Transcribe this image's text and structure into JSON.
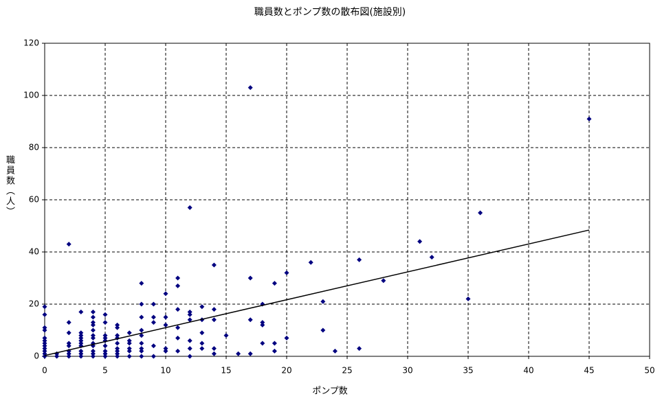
{
  "chart_data": {
    "type": "scatter",
    "title": "職員数とポンプ数の散布図(施設別)",
    "x_label": "ポンプ数",
    "y_label": "職員数（人）",
    "color": "#000080",
    "x": [
      0,
      0,
      0,
      0,
      0,
      0,
      0,
      0,
      0,
      0,
      0,
      0,
      1,
      1,
      2,
      2,
      2,
      2,
      2,
      2,
      2,
      2,
      3,
      3,
      3,
      3,
      3,
      3,
      3,
      3,
      3,
      3,
      4,
      4,
      4,
      4,
      4,
      4,
      4,
      4,
      4,
      4,
      4,
      4,
      5,
      5,
      5,
      5,
      5,
      5,
      5,
      5,
      5,
      6,
      6,
      6,
      6,
      6,
      6,
      6,
      6,
      6,
      7,
      7,
      7,
      7,
      7,
      7,
      8,
      8,
      8,
      8,
      8,
      8,
      8,
      8,
      8,
      9,
      9,
      9,
      9,
      9,
      10,
      10,
      10,
      10,
      10,
      11,
      11,
      11,
      11,
      11,
      11,
      12,
      12,
      12,
      12,
      12,
      12,
      12,
      13,
      13,
      13,
      13,
      13,
      14,
      14,
      14,
      14,
      14,
      15,
      16,
      17,
      17,
      17,
      17,
      18,
      18,
      18,
      18,
      19,
      19,
      19,
      20,
      20,
      22,
      23,
      23,
      24,
      26,
      26,
      28,
      31,
      32,
      35,
      36,
      45
    ],
    "y": [
      19,
      16,
      11,
      10,
      7,
      6,
      5,
      4,
      3,
      2,
      1,
      0,
      0,
      1,
      43,
      13,
      9,
      5,
      4,
      2,
      1,
      0,
      17,
      9,
      8,
      7,
      6,
      5,
      4,
      2,
      1,
      0,
      17,
      15,
      13,
      12,
      10,
      8,
      7,
      5,
      4,
      2,
      1,
      0,
      16,
      13,
      8,
      7,
      6,
      4,
      2,
      1,
      0,
      12,
      11,
      8,
      7,
      5,
      3,
      2,
      1,
      0,
      9,
      6,
      5,
      3,
      2,
      0,
      28,
      20,
      15,
      10,
      8,
      5,
      3,
      2,
      0,
      20,
      15,
      13,
      4,
      0,
      24,
      15,
      12,
      3,
      2,
      30,
      27,
      18,
      11,
      7,
      2,
      57,
      17,
      16,
      14,
      6,
      3,
      0,
      19,
      14,
      9,
      5,
      3,
      35,
      18,
      14,
      3,
      1,
      8,
      1,
      103,
      30,
      14,
      1,
      20,
      13,
      12,
      5,
      28,
      5,
      2,
      32,
      7,
      36,
      21,
      10,
      2,
      37,
      3,
      29,
      44,
      38,
      22,
      55,
      91
    ],
    "trendline": {
      "x": [
        0,
        45
      ],
      "y": [
        0.3,
        48.4
      ],
      "color": "#000000"
    },
    "xlim": [
      0,
      50
    ],
    "xticks": [
      0,
      5,
      10,
      15,
      20,
      25,
      30,
      35,
      40,
      45,
      50
    ],
    "ylim": [
      0,
      120
    ],
    "yticks": [
      0,
      20,
      40,
      60,
      80,
      100,
      120
    ],
    "grid": true
  }
}
